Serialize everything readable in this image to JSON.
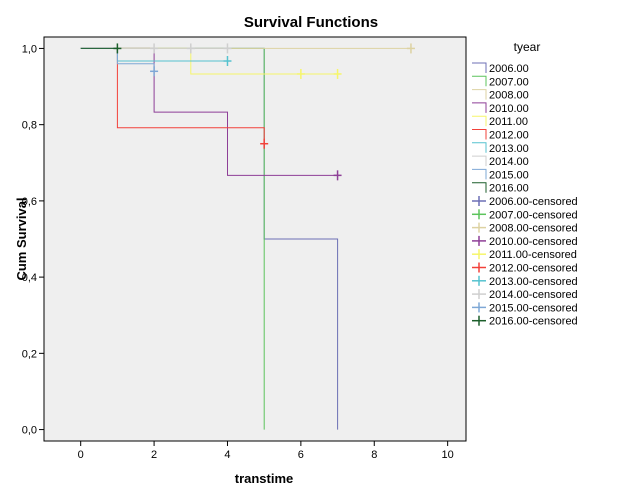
{
  "chart_data": {
    "type": "line",
    "step": true,
    "title": "Survival Functions",
    "xlabel": "transtime",
    "ylabel": "Cum Survival",
    "xlim": [
      -1,
      10.5
    ],
    "ylim": [
      -0.03,
      1.03
    ],
    "xticks": [
      0,
      2,
      4,
      6,
      8,
      10
    ],
    "xtick_labels": [
      "0",
      "2",
      "4",
      "6",
      "8",
      "10"
    ],
    "yticks": [
      0,
      0.2,
      0.4,
      0.6,
      0.8,
      1.0
    ],
    "ytick_labels": [
      "0,0",
      "0,2",
      "0,4",
      "0,6",
      "0,8",
      "1,0"
    ],
    "grid": false,
    "plot_background": "#efefef",
    "legend_title": "tyear",
    "legend_position": "right",
    "series": [
      {
        "name": "2006.00",
        "color": "#6c6fb5",
        "points": [
          [
            0,
            1
          ],
          [
            5,
            1
          ],
          [
            5,
            0.5
          ],
          [
            7,
            0.5
          ],
          [
            7,
            0
          ]
        ],
        "censored": []
      },
      {
        "name": "2007.00",
        "color": "#5cc45c",
        "points": [
          [
            0,
            1
          ],
          [
            5,
            1
          ],
          [
            5,
            0
          ]
        ],
        "censored": []
      },
      {
        "name": "2008.00",
        "color": "#ddd2a2",
        "points": [
          [
            0,
            1
          ],
          [
            9,
            1
          ]
        ],
        "censored": [
          [
            9,
            1
          ]
        ]
      },
      {
        "name": "2010.00",
        "color": "#8e3f97",
        "points": [
          [
            0,
            1
          ],
          [
            2,
            1
          ],
          [
            2,
            0.833
          ],
          [
            4,
            0.833
          ],
          [
            4,
            0.667
          ],
          [
            7,
            0.667
          ]
        ],
        "censored": [
          [
            7,
            0.667
          ]
        ]
      },
      {
        "name": "2011.00",
        "color": "#f6f66a",
        "points": [
          [
            0,
            1
          ],
          [
            3,
            1
          ],
          [
            3,
            0.933
          ],
          [
            7,
            0.933
          ]
        ],
        "censored": [
          [
            6,
            0.933
          ],
          [
            7,
            0.933
          ]
        ]
      },
      {
        "name": "2012.00",
        "color": "#f2413a",
        "points": [
          [
            0,
            1
          ],
          [
            1,
            1
          ],
          [
            1,
            0.792
          ],
          [
            5,
            0.792
          ],
          [
            5,
            0.75
          ]
        ],
        "censored": [
          [
            5,
            0.75
          ]
        ]
      },
      {
        "name": "2013.00",
        "color": "#55c2cf",
        "points": [
          [
            0,
            1
          ],
          [
            1,
            1
          ],
          [
            1,
            0.967
          ],
          [
            4,
            0.967
          ]
        ],
        "censored": [
          [
            4,
            0.967
          ]
        ]
      },
      {
        "name": "2014.00",
        "color": "#cfcfcf",
        "points": [
          [
            0,
            1
          ],
          [
            4,
            1
          ]
        ],
        "censored": [
          [
            2,
            1
          ],
          [
            3,
            1
          ],
          [
            4,
            1
          ]
        ]
      },
      {
        "name": "2015.00",
        "color": "#7ea8d6",
        "points": [
          [
            0,
            1
          ],
          [
            1,
            1
          ],
          [
            1,
            0.96
          ],
          [
            2,
            0.96
          ],
          [
            2,
            0.94
          ]
        ],
        "censored": [
          [
            2,
            0.94
          ]
        ]
      },
      {
        "name": "2016.00",
        "color": "#1b5e2a",
        "points": [
          [
            0,
            1
          ],
          [
            1,
            1
          ]
        ],
        "censored": [
          [
            1,
            1
          ]
        ]
      }
    ],
    "legend_entries": [
      {
        "label": "2006.00",
        "kind": "line",
        "color": "#6c6fb5"
      },
      {
        "label": "2007.00",
        "kind": "line",
        "color": "#5cc45c"
      },
      {
        "label": "2008.00",
        "kind": "line",
        "color": "#ddd2a2"
      },
      {
        "label": "2010.00",
        "kind": "line",
        "color": "#8e3f97"
      },
      {
        "label": "2011.00",
        "kind": "line",
        "color": "#f6f66a"
      },
      {
        "label": "2012.00",
        "kind": "line",
        "color": "#f2413a"
      },
      {
        "label": "2013.00",
        "kind": "line",
        "color": "#55c2cf"
      },
      {
        "label": "2014.00",
        "kind": "line",
        "color": "#cfcfcf"
      },
      {
        "label": "2015.00",
        "kind": "line",
        "color": "#7ea8d6"
      },
      {
        "label": "2016.00",
        "kind": "line",
        "color": "#1b5e2a"
      },
      {
        "label": "2006.00-censored",
        "kind": "censor",
        "color": "#6c6fb5"
      },
      {
        "label": "2007.00-censored",
        "kind": "censor",
        "color": "#5cc45c"
      },
      {
        "label": "2008.00-censored",
        "kind": "censor",
        "color": "#ddd2a2"
      },
      {
        "label": "2010.00-censored",
        "kind": "censor",
        "color": "#8e3f97"
      },
      {
        "label": "2011.00-censored",
        "kind": "censor",
        "color": "#f6f66a"
      },
      {
        "label": "2012.00-censored",
        "kind": "censor",
        "color": "#f2413a"
      },
      {
        "label": "2013.00-censored",
        "kind": "censor",
        "color": "#55c2cf"
      },
      {
        "label": "2014.00-censored",
        "kind": "censor",
        "color": "#cfcfcf"
      },
      {
        "label": "2015.00-censored",
        "kind": "censor",
        "color": "#7ea8d6"
      },
      {
        "label": "2016.00-censored",
        "kind": "censor",
        "color": "#1b5e2a"
      }
    ]
  }
}
